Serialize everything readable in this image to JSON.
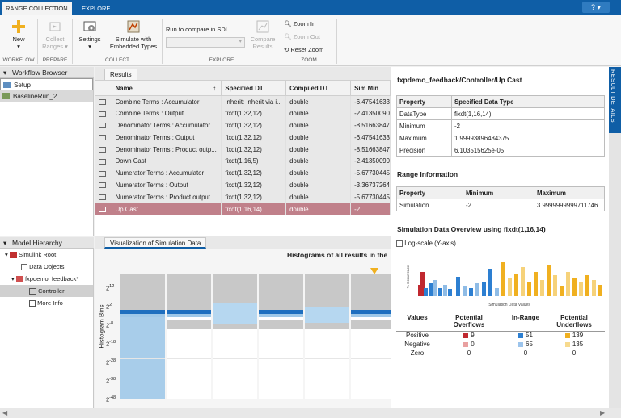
{
  "tabs": {
    "range_collection": "RANGE COLLECTION",
    "explore": "EXPLORE"
  },
  "help": {
    "label": "?"
  },
  "toolstrip": {
    "new_label": "New",
    "collect_ranges_label": "Collect Ranges",
    "settings_label": "Settings",
    "simulate_label": "Simulate with Embedded Types",
    "run_compare_label": "Run to compare in SDI",
    "compare_results_label": "Compare Results",
    "zoom_in_label": "Zoom In",
    "zoom_out_label": "Zoom Out",
    "reset_zoom_label": "Reset Zoom",
    "groups": {
      "workflow": "WORKFLOW",
      "prepare": "PREPARE",
      "collect": "COLLECT",
      "explore": "EXPLORE",
      "zoom": "ZOOM"
    }
  },
  "workflow_browser": {
    "title": "Workflow Browser",
    "items": [
      {
        "label": "Setup"
      },
      {
        "label": "BaselineRun_2"
      }
    ]
  },
  "model_hierarchy": {
    "title": "Model Hierarchy",
    "items": [
      {
        "label": "Simulink Root"
      },
      {
        "label": "Data Objects"
      },
      {
        "label": "fxpdemo_feedback*"
      },
      {
        "label": "Controller"
      },
      {
        "label": "More Info"
      }
    ]
  },
  "results": {
    "tab_label": "Results",
    "columns": [
      "Name",
      "Specified DT",
      "Compiled DT",
      "Sim Min"
    ],
    "sort_indicator": "↑",
    "rows": [
      {
        "name": "Combine Terms : Accumulator",
        "specified": "Inherit: Inherit via i...",
        "compiled": "double",
        "simmin": "-6.47541633"
      },
      {
        "name": "Combine Terms : Output",
        "specified": "fixdt(1,32,12)",
        "compiled": "double",
        "simmin": "-2.41350090"
      },
      {
        "name": "Denominator Terms : Accumulator",
        "specified": "fixdt(1,32,12)",
        "compiled": "double",
        "simmin": "-8.51663847"
      },
      {
        "name": "Denominator Terms : Output",
        "specified": "fixdt(1,32,12)",
        "compiled": "double",
        "simmin": "-6.47541633"
      },
      {
        "name": "Denominator Terms : Product outp...",
        "specified": "fixdt(1,32,12)",
        "compiled": "double",
        "simmin": "-8.51663847"
      },
      {
        "name": "Down Cast",
        "specified": "fixdt(1,16,5)",
        "compiled": "double",
        "simmin": "-2.41350090"
      },
      {
        "name": "Numerator Terms : Accumulator",
        "specified": "fixdt(1,32,12)",
        "compiled": "double",
        "simmin": "-5.67730445"
      },
      {
        "name": "Numerator Terms : Output",
        "specified": "fixdt(1,32,12)",
        "compiled": "double",
        "simmin": "-3.36737264"
      },
      {
        "name": "Numerator Terms : Product output",
        "specified": "fixdt(1,32,12)",
        "compiled": "double",
        "simmin": "-5.67730445"
      },
      {
        "name": "Up Cast",
        "specified": "fixdt(1,16,14)",
        "compiled": "double",
        "simmin": "-2"
      }
    ]
  },
  "visualization": {
    "tab_label": "Visualization of Simulation Data",
    "title": "Histograms of all results in the",
    "ylabel": "Histogram Bins",
    "yticks": [
      "2^12",
      "2^2",
      "2^-8",
      "2^-18",
      "2^-28",
      "2^-38",
      "2^-48"
    ]
  },
  "details": {
    "header": "RESULT DETAILS",
    "title": "fxpdemo_feedback/Controller/Up Cast",
    "property_headers": [
      "Property",
      "Specified Data Type"
    ],
    "properties": [
      {
        "k": "DataType",
        "v": "fixdt(1,16,14)"
      },
      {
        "k": "Minimum",
        "v": "-2"
      },
      {
        "k": "Maximum",
        "v": "1.99993896484375"
      },
      {
        "k": "Precision",
        "v": "6.103515625e-05"
      }
    ],
    "range_title": "Range Information",
    "range_headers": [
      "Property",
      "Minimum",
      "Maximum"
    ],
    "range_row": {
      "k": "Simulation",
      "min": "-2",
      "max": "3.9999999999711746"
    },
    "overview_title": "Simulation Data Overview using fixdt(1,16,14)",
    "log_scale_label": "Log-scale (Y-axis)",
    "mini_ylabel": "% Occurrence",
    "mini_xlabel": "Simulation Data Values",
    "overview_headers": [
      "Values",
      "Potential Overflows",
      "In-Range",
      "Potential Underflows"
    ],
    "overview_rows": [
      {
        "label": "Positive",
        "overflow": "9",
        "inrange": "51",
        "underflow": "139"
      },
      {
        "label": "Negative",
        "overflow": "0",
        "inrange": "65",
        "underflow": "135"
      },
      {
        "label": "Zero",
        "overflow": "0",
        "inrange": "0",
        "underflow": "0"
      }
    ],
    "colors": {
      "overflow": "#c0282f",
      "inrange": "#2d7fd1",
      "underflow": "#f0b020"
    }
  }
}
